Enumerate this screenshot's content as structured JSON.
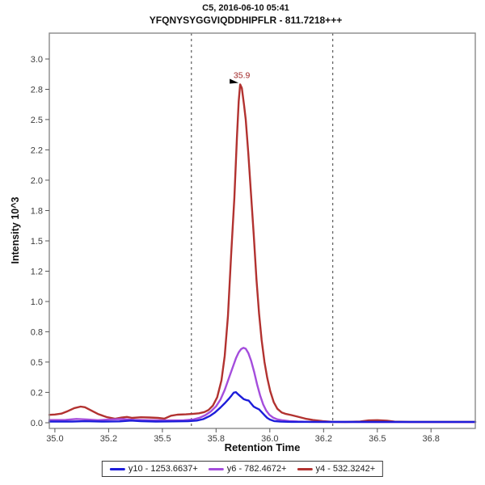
{
  "header": {
    "title": "C5, 2016-06-10 05:41",
    "subtitle": "YFQNYSYGGVIQDDHIPFLR - 811.7218+++"
  },
  "chart_data": {
    "type": "line",
    "title": "C5, 2016-06-10 05:41",
    "subtitle": "YFQNYSYGGVIQDDHIPFLR - 811.7218+++",
    "xlabel": "Retention Time",
    "ylabel": "Intensity 10^3",
    "grid": false,
    "legend_position": "bottom",
    "x_axis": {
      "min": 34.974,
      "max": 36.956,
      "ticks": [
        35.0,
        35.25,
        35.5,
        35.75,
        36.0,
        36.25,
        36.5,
        36.75
      ],
      "tick_labels": [
        "35.0",
        "35.2",
        "35.5",
        "35.8",
        "36.0",
        "36.2",
        "36.5",
        "36.8"
      ]
    },
    "y_axis": {
      "min": -0.047,
      "max": 3.213,
      "ticks": [
        0,
        0.25,
        0.5,
        0.75,
        1.0,
        1.25,
        1.5,
        1.75,
        2.0,
        2.25,
        2.5,
        2.75,
        3.0
      ],
      "tick_labels": [
        "0.0",
        "0.2",
        "0.5",
        "0.8",
        "1.0",
        "1.2",
        "1.5",
        "1.8",
        "2.0",
        "2.2",
        "2.5",
        "2.8",
        "3.0"
      ]
    },
    "boundaries": [
      35.635,
      36.293
    ],
    "boundary_color": "#3d3d3d",
    "frame_color": "#8a8a8a",
    "annotation": {
      "text": "35.9",
      "x": 35.862,
      "y": 2.79,
      "color": "#a02525"
    },
    "series": [
      {
        "name": "y10 - 1253.6637+",
        "color": "#1d1dda",
        "points": [
          [
            34.974,
            0.01
          ],
          [
            35.08,
            0.01
          ],
          [
            35.14,
            0.012
          ],
          [
            35.22,
            0.01
          ],
          [
            35.3,
            0.011
          ],
          [
            35.355,
            0.018
          ],
          [
            35.4,
            0.013
          ],
          [
            35.47,
            0.01
          ],
          [
            35.55,
            0.011
          ],
          [
            35.62,
            0.013
          ],
          [
            35.66,
            0.018
          ],
          [
            35.69,
            0.03
          ],
          [
            35.72,
            0.055
          ],
          [
            35.745,
            0.085
          ],
          [
            35.77,
            0.125
          ],
          [
            35.79,
            0.16
          ],
          [
            35.808,
            0.195
          ],
          [
            35.822,
            0.225
          ],
          [
            35.832,
            0.248
          ],
          [
            35.842,
            0.252
          ],
          [
            35.852,
            0.235
          ],
          [
            35.865,
            0.215
          ],
          [
            35.878,
            0.195
          ],
          [
            35.89,
            0.187
          ],
          [
            35.902,
            0.182
          ],
          [
            35.912,
            0.16
          ],
          [
            35.925,
            0.132
          ],
          [
            35.938,
            0.12
          ],
          [
            35.95,
            0.11
          ],
          [
            35.962,
            0.088
          ],
          [
            35.975,
            0.062
          ],
          [
            35.988,
            0.04
          ],
          [
            36.0,
            0.026
          ],
          [
            36.02,
            0.014
          ],
          [
            36.05,
            0.009
          ],
          [
            36.1,
            0.007
          ],
          [
            36.3,
            0.007
          ],
          [
            36.6,
            0.007
          ],
          [
            36.956,
            0.007
          ]
        ]
      },
      {
        "name": "y6 - 782.4672+",
        "color": "#a44ddc",
        "points": [
          [
            34.974,
            0.022
          ],
          [
            35.05,
            0.024
          ],
          [
            35.1,
            0.031
          ],
          [
            35.15,
            0.027
          ],
          [
            35.2,
            0.021
          ],
          [
            35.26,
            0.027
          ],
          [
            35.31,
            0.03
          ],
          [
            35.37,
            0.023
          ],
          [
            35.44,
            0.021
          ],
          [
            35.52,
            0.019
          ],
          [
            35.6,
            0.02
          ],
          [
            35.645,
            0.027
          ],
          [
            35.675,
            0.042
          ],
          [
            35.7,
            0.062
          ],
          [
            35.725,
            0.092
          ],
          [
            35.75,
            0.135
          ],
          [
            35.77,
            0.19
          ],
          [
            35.79,
            0.27
          ],
          [
            35.81,
            0.37
          ],
          [
            35.828,
            0.46
          ],
          [
            35.843,
            0.535
          ],
          [
            35.855,
            0.58
          ],
          [
            35.866,
            0.607
          ],
          [
            35.877,
            0.618
          ],
          [
            35.888,
            0.61
          ],
          [
            35.9,
            0.575
          ],
          [
            35.913,
            0.51
          ],
          [
            35.927,
            0.42
          ],
          [
            35.941,
            0.315
          ],
          [
            35.955,
            0.225
          ],
          [
            35.969,
            0.15
          ],
          [
            35.983,
            0.1
          ],
          [
            35.998,
            0.065
          ],
          [
            36.015,
            0.042
          ],
          [
            36.035,
            0.028
          ],
          [
            36.06,
            0.02
          ],
          [
            36.09,
            0.014
          ],
          [
            36.13,
            0.01
          ],
          [
            36.19,
            0.007
          ],
          [
            36.28,
            0.006
          ],
          [
            36.5,
            0.005
          ],
          [
            36.956,
            0.005
          ]
        ]
      },
      {
        "name": "y4 - 532.3242+",
        "color": "#b23230",
        "points": [
          [
            34.974,
            0.065
          ],
          [
            35.0,
            0.068
          ],
          [
            35.03,
            0.075
          ],
          [
            35.06,
            0.096
          ],
          [
            35.09,
            0.12
          ],
          [
            35.12,
            0.133
          ],
          [
            35.14,
            0.128
          ],
          [
            35.17,
            0.1
          ],
          [
            35.2,
            0.072
          ],
          [
            35.24,
            0.047
          ],
          [
            35.28,
            0.033
          ],
          [
            35.31,
            0.042
          ],
          [
            35.335,
            0.048
          ],
          [
            35.36,
            0.04
          ],
          [
            35.4,
            0.045
          ],
          [
            35.44,
            0.043
          ],
          [
            35.48,
            0.04
          ],
          [
            35.51,
            0.034
          ],
          [
            35.54,
            0.058
          ],
          [
            35.57,
            0.066
          ],
          [
            35.61,
            0.069
          ],
          [
            35.64,
            0.072
          ],
          [
            35.67,
            0.078
          ],
          [
            35.695,
            0.088
          ],
          [
            35.715,
            0.105
          ],
          [
            35.735,
            0.14
          ],
          [
            35.755,
            0.21
          ],
          [
            35.775,
            0.35
          ],
          [
            35.79,
            0.55
          ],
          [
            35.805,
            0.88
          ],
          [
            35.82,
            1.38
          ],
          [
            35.835,
            1.85
          ],
          [
            35.847,
            2.35
          ],
          [
            35.855,
            2.65
          ],
          [
            35.862,
            2.79
          ],
          [
            35.87,
            2.76
          ],
          [
            35.88,
            2.62
          ],
          [
            35.888,
            2.5
          ],
          [
            35.9,
            2.22
          ],
          [
            35.912,
            1.9
          ],
          [
            35.925,
            1.55
          ],
          [
            35.938,
            1.18
          ],
          [
            35.95,
            0.9
          ],
          [
            35.962,
            0.68
          ],
          [
            35.975,
            0.5
          ],
          [
            35.988,
            0.37
          ],
          [
            36.002,
            0.26
          ],
          [
            36.018,
            0.17
          ],
          [
            36.035,
            0.115
          ],
          [
            36.055,
            0.085
          ],
          [
            36.075,
            0.072
          ],
          [
            36.1,
            0.063
          ],
          [
            36.13,
            0.05
          ],
          [
            36.165,
            0.034
          ],
          [
            36.2,
            0.022
          ],
          [
            36.245,
            0.013
          ],
          [
            36.29,
            0.008
          ],
          [
            36.35,
            0.006
          ],
          [
            36.42,
            0.01
          ],
          [
            36.46,
            0.019
          ],
          [
            36.5,
            0.021
          ],
          [
            36.545,
            0.017
          ],
          [
            36.58,
            0.009
          ],
          [
            36.65,
            0.006
          ],
          [
            36.8,
            0.006
          ],
          [
            36.956,
            0.006
          ]
        ]
      }
    ]
  }
}
